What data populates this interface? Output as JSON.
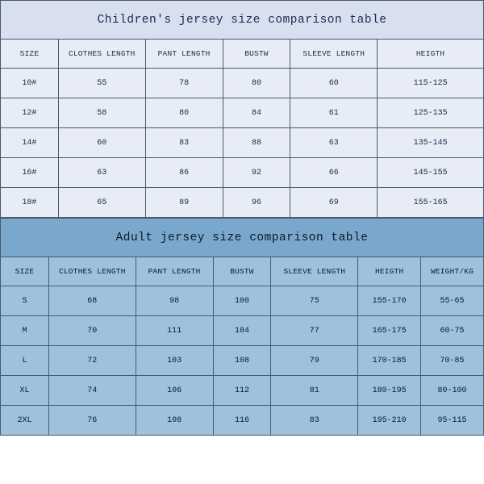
{
  "children_table": {
    "type": "table",
    "title": "Children's jersey size comparison table",
    "title_bg": "#d8e0f0",
    "cell_bg": "#e8ecf6",
    "border_color": "#4a5a6a",
    "text_color": "#1a2a4a",
    "title_fontsize": 14.5,
    "header_fontsize": 9.5,
    "cell_fontsize": 10,
    "font_family": "Courier New, monospace",
    "col_widths_pct": [
      12,
      18,
      16,
      14,
      18,
      22
    ],
    "columns": [
      "SIZE",
      "CLOTHES LENGTH",
      "PANT LENGTH",
      "BUSTW",
      "SLEEVE LENGTH",
      "HEIGTH"
    ],
    "rows": [
      [
        "10#",
        "55",
        "78",
        "80",
        "60",
        "115-125"
      ],
      [
        "12#",
        "58",
        "80",
        "84",
        "61",
        "125-135"
      ],
      [
        "14#",
        "60",
        "83",
        "88",
        "63",
        "135-145"
      ],
      [
        "16#",
        "63",
        "86",
        "92",
        "66",
        "145-155"
      ],
      [
        "18#",
        "65",
        "89",
        "96",
        "69",
        "155-165"
      ]
    ]
  },
  "adult_table": {
    "type": "table",
    "title": "Adult jersey size comparison table",
    "title_bg": "#7aa8cc",
    "cell_bg": "#9ec2de",
    "border_color": "#4a5a6a",
    "text_color": "#0a1a2a",
    "title_fontsize": 14.5,
    "header_fontsize": 9.5,
    "cell_fontsize": 10,
    "font_family": "Courier New, monospace",
    "col_widths_pct": [
      10,
      18,
      16,
      12,
      18,
      13,
      13
    ],
    "columns": [
      "SIZE",
      "CLOTHES LENGTH",
      "PANT LENGTH",
      "BUSTW",
      "SLEEVE LENGTH",
      "HEIGTH",
      "WEIGHT/KG"
    ],
    "rows": [
      [
        "S",
        "68",
        "98",
        "100",
        "75",
        "155-170",
        "55-65"
      ],
      [
        "M",
        "70",
        "111",
        "104",
        "77",
        "165-175",
        "60-75"
      ],
      [
        "L",
        "72",
        "103",
        "108",
        "79",
        "170-185",
        "70-85"
      ],
      [
        "XL",
        "74",
        "106",
        "112",
        "81",
        "180-195",
        "80-100"
      ],
      [
        "2XL",
        "76",
        "108",
        "116",
        "83",
        "195-210",
        "95-115"
      ]
    ]
  }
}
